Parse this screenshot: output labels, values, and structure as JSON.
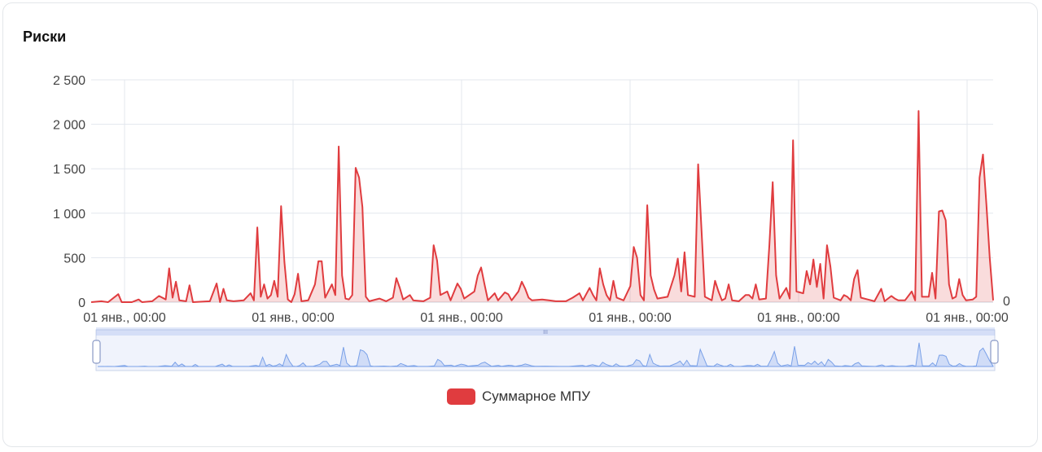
{
  "card": {
    "title": "Риски"
  },
  "legend": {
    "label": "Суммарное МПУ",
    "color": "#e03c3f"
  },
  "zoom": {
    "start": 0,
    "end": 100,
    "handle_icon": "drag-handle-icon"
  },
  "chart_data": {
    "type": "area",
    "title": "",
    "ylabel": "",
    "xlabel": "",
    "ylim": [
      0,
      2500
    ],
    "yticks": [
      "0",
      "500",
      "1 000",
      "1 500",
      "2 000",
      "2 500"
    ],
    "xticks": [
      "01 янв., 00:00",
      "01 янв., 00:00",
      "01 янв., 00:00",
      "01 янв., 00:00",
      "01 янв., 00:00",
      "01 янв., 00:00"
    ],
    "right_axis_label": "0",
    "grid": true,
    "legend_position": "bottom",
    "series": [
      {
        "name": "Суммарное МПУ",
        "color": "#e03c3f",
        "points": [
          [
            0,
            0
          ],
          [
            3,
            10
          ],
          [
            5,
            0
          ],
          [
            8,
            90
          ],
          [
            9,
            0
          ],
          [
            12,
            0
          ],
          [
            14,
            30
          ],
          [
            15,
            0
          ],
          [
            18,
            10
          ],
          [
            20,
            70
          ],
          [
            22,
            30
          ],
          [
            23,
            380
          ],
          [
            24,
            50
          ],
          [
            25,
            230
          ],
          [
            26,
            20
          ],
          [
            28,
            10
          ],
          [
            29,
            190
          ],
          [
            30,
            0
          ],
          [
            35,
            10
          ],
          [
            37,
            210
          ],
          [
            38,
            0
          ],
          [
            39,
            150
          ],
          [
            40,
            20
          ],
          [
            42,
            10
          ],
          [
            45,
            20
          ],
          [
            47,
            100
          ],
          [
            48,
            20
          ],
          [
            49,
            840
          ],
          [
            50,
            60
          ],
          [
            51,
            200
          ],
          [
            52,
            40
          ],
          [
            53,
            80
          ],
          [
            54,
            240
          ],
          [
            55,
            60
          ],
          [
            56,
            1080
          ],
          [
            57,
            450
          ],
          [
            58,
            30
          ],
          [
            59,
            0
          ],
          [
            60,
            90
          ],
          [
            61,
            320
          ],
          [
            62,
            10
          ],
          [
            64,
            20
          ],
          [
            66,
            200
          ],
          [
            67,
            460
          ],
          [
            68,
            460
          ],
          [
            69,
            50
          ],
          [
            71,
            200
          ],
          [
            72,
            80
          ],
          [
            73,
            1750
          ],
          [
            74,
            300
          ],
          [
            75,
            40
          ],
          [
            76,
            30
          ],
          [
            77,
            80
          ],
          [
            78,
            1510
          ],
          [
            79,
            1400
          ],
          [
            80,
            1070
          ],
          [
            81,
            60
          ],
          [
            82,
            10
          ],
          [
            85,
            40
          ],
          [
            87,
            10
          ],
          [
            89,
            50
          ],
          [
            90,
            270
          ],
          [
            91,
            160
          ],
          [
            92,
            30
          ],
          [
            94,
            80
          ],
          [
            95,
            20
          ],
          [
            98,
            10
          ],
          [
            100,
            50
          ],
          [
            101,
            640
          ],
          [
            102,
            470
          ],
          [
            103,
            80
          ],
          [
            105,
            120
          ],
          [
            106,
            20
          ],
          [
            108,
            210
          ],
          [
            109,
            150
          ],
          [
            110,
            40
          ],
          [
            113,
            120
          ],
          [
            114,
            300
          ],
          [
            115,
            390
          ],
          [
            116,
            200
          ],
          [
            117,
            20
          ],
          [
            119,
            100
          ],
          [
            120,
            20
          ],
          [
            122,
            110
          ],
          [
            123,
            90
          ],
          [
            124,
            20
          ],
          [
            126,
            120
          ],
          [
            127,
            230
          ],
          [
            128,
            150
          ],
          [
            129,
            50
          ],
          [
            130,
            20
          ],
          [
            133,
            30
          ],
          [
            135,
            20
          ],
          [
            137,
            10
          ],
          [
            140,
            10
          ],
          [
            142,
            50
          ],
          [
            144,
            100
          ],
          [
            145,
            20
          ],
          [
            147,
            160
          ],
          [
            148,
            80
          ],
          [
            149,
            20
          ],
          [
            150,
            380
          ],
          [
            151,
            200
          ],
          [
            152,
            80
          ],
          [
            153,
            20
          ],
          [
            154,
            240
          ],
          [
            155,
            50
          ],
          [
            157,
            20
          ],
          [
            159,
            180
          ],
          [
            160,
            620
          ],
          [
            161,
            500
          ],
          [
            162,
            80
          ],
          [
            163,
            20
          ],
          [
            164,
            1090
          ],
          [
            165,
            300
          ],
          [
            166,
            140
          ],
          [
            167,
            40
          ],
          [
            170,
            60
          ],
          [
            172,
            300
          ],
          [
            173,
            490
          ],
          [
            174,
            120
          ],
          [
            175,
            560
          ],
          [
            176,
            80
          ],
          [
            178,
            60
          ],
          [
            179,
            1550
          ],
          [
            180,
            800
          ],
          [
            181,
            60
          ],
          [
            183,
            20
          ],
          [
            184,
            240
          ],
          [
            185,
            120
          ],
          [
            186,
            20
          ],
          [
            187,
            40
          ],
          [
            188,
            200
          ],
          [
            189,
            20
          ],
          [
            191,
            10
          ],
          [
            193,
            80
          ],
          [
            194,
            80
          ],
          [
            195,
            40
          ],
          [
            196,
            200
          ],
          [
            197,
            30
          ],
          [
            199,
            40
          ],
          [
            200,
            640
          ],
          [
            201,
            1350
          ],
          [
            202,
            300
          ],
          [
            203,
            40
          ],
          [
            205,
            160
          ],
          [
            206,
            40
          ],
          [
            207,
            1820
          ],
          [
            208,
            120
          ],
          [
            210,
            100
          ],
          [
            211,
            350
          ],
          [
            212,
            200
          ],
          [
            213,
            480
          ],
          [
            214,
            170
          ],
          [
            215,
            430
          ],
          [
            216,
            40
          ],
          [
            217,
            640
          ],
          [
            218,
            400
          ],
          [
            219,
            50
          ],
          [
            221,
            20
          ],
          [
            222,
            80
          ],
          [
            223,
            60
          ],
          [
            224,
            20
          ],
          [
            225,
            260
          ],
          [
            226,
            360
          ],
          [
            227,
            50
          ],
          [
            229,
            30
          ],
          [
            231,
            10
          ],
          [
            233,
            150
          ],
          [
            234,
            10
          ],
          [
            236,
            70
          ],
          [
            237,
            40
          ],
          [
            238,
            20
          ],
          [
            240,
            20
          ],
          [
            242,
            120
          ],
          [
            243,
            20
          ],
          [
            244,
            2150
          ],
          [
            245,
            60
          ],
          [
            247,
            60
          ],
          [
            248,
            330
          ],
          [
            249,
            40
          ],
          [
            250,
            1020
          ],
          [
            251,
            1030
          ],
          [
            252,
            920
          ],
          [
            253,
            200
          ],
          [
            254,
            40
          ],
          [
            255,
            60
          ],
          [
            256,
            260
          ],
          [
            257,
            80
          ],
          [
            258,
            20
          ],
          [
            260,
            30
          ],
          [
            261,
            60
          ],
          [
            262,
            1400
          ],
          [
            263,
            1660
          ],
          [
            264,
            1100
          ],
          [
            265,
            500
          ],
          [
            266,
            20
          ]
        ]
      }
    ]
  }
}
